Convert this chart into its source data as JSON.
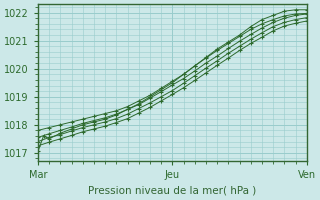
{
  "xlabel": "Pression niveau de la mer( hPa )",
  "bg_color": "#cce8e8",
  "grid_color": "#99cccc",
  "line_color": "#2d6a2d",
  "tick_label_color": "#2d6a2d",
  "axis_label_color": "#336633",
  "border_color": "#336633",
  "ylim": [
    1016.7,
    1022.3
  ],
  "xlim": [
    0,
    48
  ],
  "yticks": [
    1017,
    1018,
    1019,
    1020,
    1021,
    1022
  ],
  "xtick_positions": [
    0,
    24,
    48
  ],
  "xtick_labels": [
    "Mar",
    "Jeu",
    "Ven"
  ],
  "series": [
    {
      "x": [
        0,
        1,
        2,
        4,
        6,
        8,
        10,
        12,
        14,
        16,
        18,
        20,
        22,
        24,
        26,
        28,
        30,
        32,
        34,
        36,
        38,
        40,
        42,
        44,
        46,
        48
      ],
      "y": [
        1017.05,
        1017.6,
        1017.5,
        1017.7,
        1017.85,
        1018.0,
        1018.1,
        1018.2,
        1018.35,
        1018.55,
        1018.75,
        1019.0,
        1019.25,
        1019.5,
        1019.8,
        1020.1,
        1020.4,
        1020.7,
        1020.95,
        1021.2,
        1021.5,
        1021.75,
        1021.9,
        1022.05,
        1022.1,
        1022.1
      ]
    },
    {
      "x": [
        0,
        2,
        4,
        6,
        8,
        10,
        12,
        14,
        16,
        18,
        20,
        22,
        24,
        26,
        28,
        30,
        32,
        34,
        36,
        38,
        40,
        42,
        44,
        46,
        48
      ],
      "y": [
        1017.8,
        1017.9,
        1018.0,
        1018.1,
        1018.2,
        1018.3,
        1018.4,
        1018.5,
        1018.65,
        1018.85,
        1019.05,
        1019.3,
        1019.55,
        1019.8,
        1020.1,
        1020.38,
        1020.65,
        1020.9,
        1021.15,
        1021.4,
        1021.6,
        1021.75,
        1021.88,
        1021.95,
        1021.97
      ]
    },
    {
      "x": [
        0,
        2,
        4,
        6,
        8,
        10,
        12,
        14,
        16,
        18,
        20,
        22,
        24,
        26,
        28,
        30,
        32,
        34,
        36,
        38,
        40,
        42,
        44,
        46,
        48
      ],
      "y": [
        1017.4,
        1017.55,
        1017.65,
        1017.78,
        1017.9,
        1018.0,
        1018.1,
        1018.22,
        1018.38,
        1018.58,
        1018.78,
        1019.0,
        1019.22,
        1019.48,
        1019.75,
        1020.02,
        1020.28,
        1020.55,
        1020.8,
        1021.05,
        1021.28,
        1021.5,
        1021.65,
        1021.75,
        1021.82
      ]
    },
    {
      "x": [
        0,
        2,
        4,
        6,
        8,
        10,
        12,
        14,
        16,
        18,
        20,
        22,
        24,
        26,
        28,
        30,
        32,
        34,
        36,
        38,
        40,
        42,
        44,
        46,
        48
      ],
      "y": [
        1017.55,
        1017.68,
        1017.8,
        1017.92,
        1018.05,
        1018.15,
        1018.25,
        1018.38,
        1018.55,
        1018.72,
        1018.95,
        1019.18,
        1019.42,
        1019.65,
        1019.92,
        1020.2,
        1020.45,
        1020.72,
        1020.98,
        1021.22,
        1021.45,
        1021.65,
        1021.8,
        1021.9,
        1021.95
      ]
    },
    {
      "x": [
        0,
        2,
        4,
        6,
        8,
        10,
        12,
        14,
        16,
        18,
        20,
        22,
        24,
        26,
        28,
        30,
        32,
        34,
        36,
        38,
        40,
        42,
        44,
        46,
        48
      ],
      "y": [
        1017.25,
        1017.38,
        1017.5,
        1017.62,
        1017.75,
        1017.85,
        1017.95,
        1018.08,
        1018.22,
        1018.42,
        1018.62,
        1018.85,
        1019.08,
        1019.32,
        1019.58,
        1019.85,
        1020.12,
        1020.38,
        1020.65,
        1020.9,
        1021.12,
        1021.35,
        1021.52,
        1021.62,
        1021.7
      ]
    }
  ]
}
